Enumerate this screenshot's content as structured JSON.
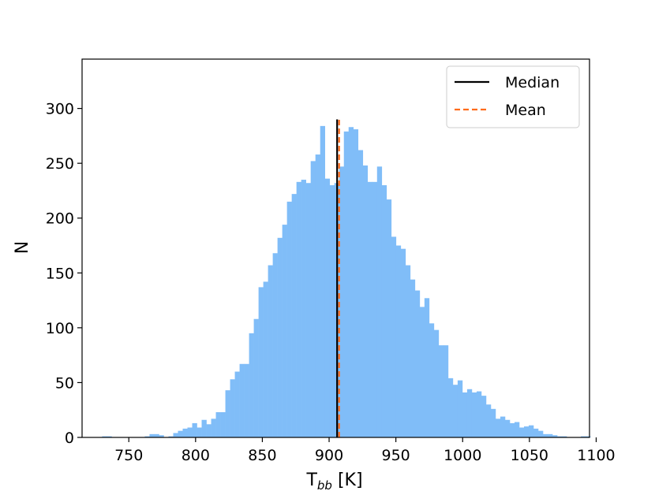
{
  "chart_data": {
    "type": "bar",
    "title": "",
    "xlabel_main": "T",
    "xlabel_sub": "bb",
    "xlabel_unit": " [K]",
    "ylabel": "N",
    "xlim": [
      715,
      1095
    ],
    "ylim": [
      0,
      345
    ],
    "xticks": [
      750,
      800,
      850,
      900,
      950,
      1000,
      1050,
      1100
    ],
    "yticks": [
      0,
      50,
      100,
      150,
      200,
      250,
      300
    ],
    "bar_color": "#80bdf8",
    "bins": {
      "start": 730,
      "width": 3.55,
      "counts": [
        1,
        1,
        0,
        0,
        0,
        0,
        0,
        0,
        0,
        1,
        3,
        3,
        2,
        0,
        1,
        4,
        6,
        8,
        9,
        13,
        9,
        16,
        12,
        17,
        23,
        23,
        43,
        53,
        60,
        67,
        67,
        95,
        108,
        137,
        142,
        157,
        168,
        182,
        194,
        215,
        222,
        233,
        235,
        232,
        252,
        258,
        284,
        236,
        230,
        232,
        247,
        279,
        283,
        281,
        262,
        248,
        233,
        233,
        247,
        230,
        217,
        183,
        175,
        172,
        157,
        144,
        134,
        119,
        127,
        104,
        98,
        84,
        84,
        54,
        48,
        52,
        41,
        44,
        41,
        42,
        38,
        30,
        26,
        17,
        19,
        16,
        13,
        14,
        9,
        10,
        11,
        8,
        6,
        3,
        3,
        2,
        1,
        1,
        0,
        0,
        0,
        1,
        1,
        0,
        0
      ]
    },
    "median": 906.0,
    "mean": 907.5,
    "median_color": "#000000",
    "mean_color": "#ff6b1a",
    "legend": {
      "position": "top-right",
      "entries": [
        {
          "label": "Median",
          "style": "solid",
          "color": "#000000"
        },
        {
          "label": "Mean",
          "style": "dashed",
          "color": "#ff6b1a"
        }
      ]
    }
  }
}
